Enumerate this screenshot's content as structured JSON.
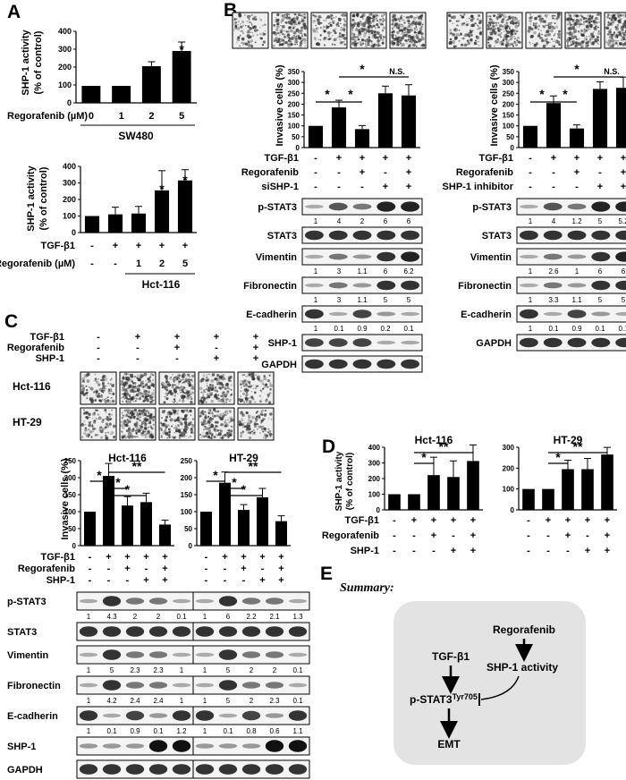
{
  "panels": {
    "A": "A",
    "B": "B",
    "C": "C",
    "D": "D",
    "E": "E"
  },
  "panelA": {
    "top": {
      "ylabel": "SHP-1 activity\n(% of control)",
      "yticks": [
        "0",
        "100",
        "200",
        "300",
        "400"
      ],
      "row_label": "Regorafenib (µM)",
      "doses": [
        "0",
        "1",
        "2",
        "5"
      ],
      "cell_line": "SW480"
    },
    "bottom": {
      "ylabel": "SHP-1 activity\n(% of control)",
      "yticks": [
        "0",
        "100",
        "200",
        "300",
        "400"
      ],
      "rows": [
        {
          "label": "TGF-β1",
          "marks": [
            "-",
            "+",
            "+",
            "+",
            "+"
          ]
        },
        {
          "label": "Regorafenib (µM)",
          "marks": [
            "-",
            "-",
            "1",
            "2",
            "5"
          ]
        }
      ],
      "cell_line": "Hct-116"
    }
  },
  "panelB": {
    "ylabel": "Invasive cells (%)",
    "yticks": [
      "0",
      "50",
      "100",
      "150",
      "200",
      "250",
      "300",
      "350"
    ],
    "ns": "N.S.",
    "star": "*",
    "left": {
      "rows": [
        {
          "label": "TGF-β1",
          "marks": [
            "-",
            "+",
            "+",
            "+",
            "+"
          ]
        },
        {
          "label": "Regorafenib",
          "marks": [
            "-",
            "-",
            "+",
            "-",
            "+"
          ]
        },
        {
          "label": "siSHP-1",
          "marks": [
            "-",
            "-",
            "-",
            "+",
            "+"
          ]
        }
      ],
      "blots": [
        {
          "label": "p-STAT3",
          "vals": [
            "1",
            "4",
            "2",
            "6",
            "6"
          ]
        },
        {
          "label": "STAT3",
          "vals": []
        },
        {
          "label": "Vimentin",
          "vals": [
            "1",
            "3",
            "1.1",
            "6",
            "6.2"
          ]
        },
        {
          "label": "Fibronectin",
          "vals": [
            "1",
            "3",
            "1.1",
            "5",
            "5"
          ]
        },
        {
          "label": "E-cadherin",
          "vals": [
            "1",
            "0.1",
            "0.9",
            "0.2",
            "0.1"
          ]
        },
        {
          "label": "SHP-1",
          "vals": []
        },
        {
          "label": "GAPDH",
          "vals": []
        }
      ]
    },
    "right": {
      "rows": [
        {
          "label": "TGF-β1",
          "marks": [
            "-",
            "+",
            "+",
            "+",
            "+"
          ]
        },
        {
          "label": "Regorafenib",
          "marks": [
            "-",
            "-",
            "+",
            "-",
            "+"
          ]
        },
        {
          "label": "SHP-1 inhibitor",
          "marks": [
            "-",
            "-",
            "-",
            "+",
            "+"
          ]
        }
      ],
      "blots": [
        {
          "label": "p-STAT3",
          "vals": [
            "1",
            "4",
            "1.2",
            "5",
            "5.2"
          ]
        },
        {
          "label": "STAT3",
          "vals": []
        },
        {
          "label": "Vimentin",
          "vals": [
            "1",
            "2.6",
            "1",
            "6",
            "6"
          ]
        },
        {
          "label": "Fibronectin",
          "vals": [
            "1",
            "3.3",
            "1.1",
            "5",
            "5"
          ]
        },
        {
          "label": "E-cadherin",
          "vals": [
            "1",
            "0.1",
            "0.9",
            "0.1",
            "0.1"
          ]
        },
        {
          "label": "GAPDH",
          "vals": []
        }
      ]
    }
  },
  "panelC": {
    "rows": [
      {
        "label": "TGF-β1",
        "marks": [
          "-",
          "+",
          "+",
          "+",
          "+"
        ]
      },
      {
        "label": "Regorafenib",
        "marks": [
          "-",
          "-",
          "+",
          "-",
          "+"
        ]
      },
      {
        "label": "SHP-1",
        "marks": [
          "-",
          "-",
          "-",
          "+",
          "+"
        ]
      }
    ],
    "image_rows": [
      "Hct-116",
      "HT-29"
    ],
    "ylabel": "Invasive cells (%)",
    "yticks": [
      "0",
      "50",
      "100",
      "150",
      "200",
      "250"
    ],
    "titles": [
      "Hct-116",
      "HT-29"
    ],
    "blots_left": [
      {
        "label": "p-STAT3",
        "vals": [
          "1",
          "4.3",
          "2",
          "2",
          "0.1"
        ]
      },
      {
        "label": "STAT3",
        "vals": []
      },
      {
        "label": "Vimentin",
        "vals": [
          "1",
          "5",
          "2.3",
          "2.3",
          "1"
        ]
      },
      {
        "label": "Fibronectin",
        "vals": [
          "1",
          "4.2",
          "2.4",
          "2.4",
          "1"
        ]
      },
      {
        "label": "E-cadherin",
        "vals": [
          "1",
          "0.1",
          "0.9",
          "0.1",
          "1.2"
        ]
      },
      {
        "label": "SHP-1",
        "vals": []
      },
      {
        "label": "GAPDH",
        "vals": []
      }
    ],
    "blots_right_vals": [
      [
        "1",
        "6",
        "2.2",
        "2.1",
        "1.3"
      ],
      [],
      [
        "1",
        "5",
        "2",
        "2",
        "0.1"
      ],
      [
        "1",
        "5",
        "2",
        "2.3",
        "0.1"
      ],
      [
        "1",
        "0.1",
        "0.8",
        "0.6",
        "1.1"
      ],
      [],
      []
    ]
  },
  "panelD": {
    "titles": [
      "Hct-116",
      "HT-29"
    ],
    "ylabel": "SHP-1 activity\n(% of control)",
    "yticks": [
      "0",
      "100",
      "200",
      "300",
      "400"
    ],
    "rows": [
      {
        "label": "TGF-β1",
        "marks": [
          "-",
          "+",
          "+",
          "+",
          "+"
        ]
      },
      {
        "label": "Regorafenib",
        "marks": [
          "-",
          "-",
          "+",
          "-",
          "+"
        ]
      },
      {
        "label": "SHP-1",
        "marks": [
          "-",
          "-",
          "-",
          "+",
          "+"
        ]
      }
    ]
  },
  "panelE": {
    "summary_label": "Summary:",
    "regorafenib": "Regorafenib",
    "tgf": "TGF-β1",
    "shp1_activity": "SHP-1 activity",
    "pstat3": "p-STAT3",
    "pstat3_sup": "Tyr705",
    "emt": "EMT"
  },
  "chart_data": [
    {
      "type": "bar",
      "id": "A-top",
      "categories": [
        "0",
        "1",
        "2",
        "5"
      ],
      "values": [
        95,
        95,
        205,
        290
      ],
      "ylabel": "SHP-1 activity (% of control)",
      "ylim": [
        0,
        400
      ],
      "xlabel": "Regorafenib (µM)"
    },
    {
      "type": "bar",
      "id": "A-bottom",
      "categories": [
        "1",
        "2",
        "3",
        "4",
        "5"
      ],
      "values": [
        100,
        110,
        115,
        255,
        315
      ],
      "ylabel": "SHP-1 activity (% of control)",
      "ylim": [
        0,
        400
      ]
    },
    {
      "type": "bar",
      "id": "B-left",
      "categories": [
        "1",
        "2",
        "3",
        "4",
        "5"
      ],
      "values": [
        100,
        185,
        85,
        250,
        240
      ],
      "ylabel": "Invasive cells (%)",
      "ylim": [
        0,
        350
      ]
    },
    {
      "type": "bar",
      "id": "B-right",
      "categories": [
        "1",
        "2",
        "3",
        "4",
        "5"
      ],
      "values": [
        100,
        205,
        88,
        270,
        275
      ],
      "ylabel": "Invasive cells (%)",
      "ylim": [
        0,
        350
      ]
    },
    {
      "type": "bar",
      "id": "C-left",
      "title": "Hct-116",
      "categories": [
        "1",
        "2",
        "3",
        "4",
        "5"
      ],
      "values": [
        100,
        205,
        118,
        128,
        62
      ],
      "ylabel": "Invasive cells (%)",
      "ylim": [
        0,
        250
      ]
    },
    {
      "type": "bar",
      "id": "C-right",
      "title": "HT-29",
      "categories": [
        "1",
        "2",
        "3",
        "4",
        "5"
      ],
      "values": [
        100,
        185,
        105,
        142,
        72
      ],
      "ylim": [
        0,
        250
      ]
    },
    {
      "type": "bar",
      "id": "D-left",
      "title": "Hct-116",
      "categories": [
        "1",
        "2",
        "3",
        "4",
        "5"
      ],
      "values": [
        100,
        100,
        222,
        210,
        312
      ],
      "ylabel": "SHP-1 activity (% of control)",
      "ylim": [
        0,
        400
      ]
    },
    {
      "type": "bar",
      "id": "D-right",
      "title": "HT-29",
      "categories": [
        "1",
        "2",
        "3",
        "4",
        "5"
      ],
      "values": [
        100,
        100,
        195,
        195,
        265
      ],
      "ylim": [
        0,
        300
      ]
    }
  ]
}
